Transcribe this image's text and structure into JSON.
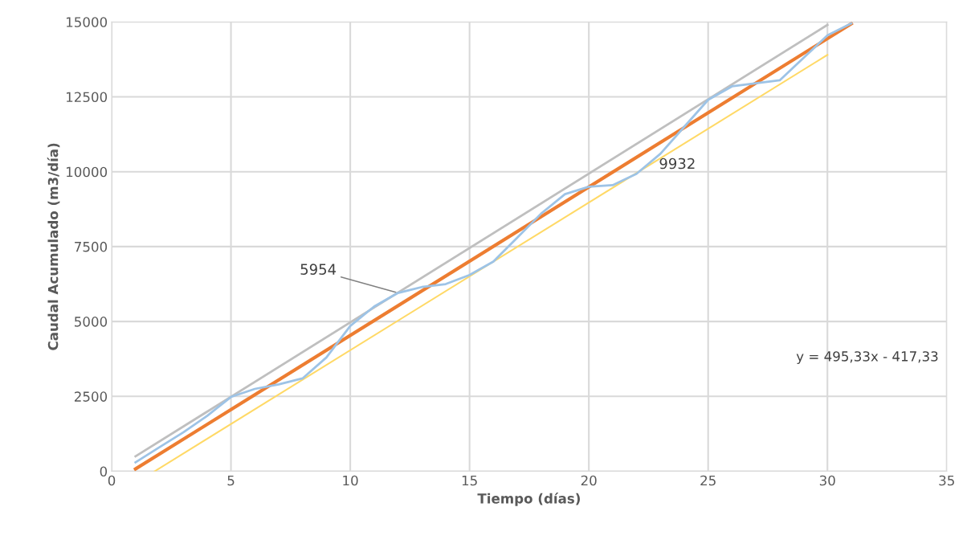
{
  "chart_data": {
    "type": "line",
    "xlabel": "Tiempo (días)",
    "ylabel": "Caudal Acumulado (m3/día)",
    "xlim": [
      0,
      35
    ],
    "xticks": [
      0,
      5,
      10,
      15,
      20,
      25,
      30,
      35
    ],
    "ylim": [
      0,
      15000
    ],
    "yticks": [
      0,
      2500,
      5000,
      7500,
      10000,
      12500,
      15000
    ],
    "grid": true,
    "marker": "none",
    "line_style": "solid",
    "series": [
      {
        "color": "#9dc3e6",
        "x": [
          1,
          2,
          3,
          4,
          5,
          6,
          7,
          8,
          9,
          10,
          11,
          12,
          13,
          14,
          15,
          16,
          17,
          18,
          19,
          20,
          21,
          22,
          23,
          24,
          25,
          26,
          27,
          28,
          29,
          30,
          31
        ],
        "values": [
          300,
          800,
          1300,
          1850,
          2480,
          2750,
          2900,
          3100,
          3800,
          4850,
          5500,
          5954,
          6150,
          6250,
          6550,
          7000,
          7800,
          8600,
          9250,
          9500,
          9550,
          9932,
          10600,
          11500,
          12400,
          12850,
          12950,
          13050,
          13800,
          14550,
          14950
        ]
      },
      {
        "color": "#bfbfbf",
        "x": [
          1,
          30
        ],
        "values": [
          500,
          14900
        ]
      },
      {
        "color": "#ffd966",
        "x": [
          1.8,
          30
        ],
        "values": [
          0,
          13900
        ]
      },
      {
        "color": "#ed7d31",
        "x": [
          1,
          31
        ],
        "values": [
          78,
          14938
        ]
      }
    ],
    "annotations": [
      {
        "text": "5954",
        "x": 12,
        "y": 5954
      },
      {
        "text": "9932",
        "x": 22,
        "y": 9932
      },
      "y = 495,33x - 417,33"
    ]
  }
}
